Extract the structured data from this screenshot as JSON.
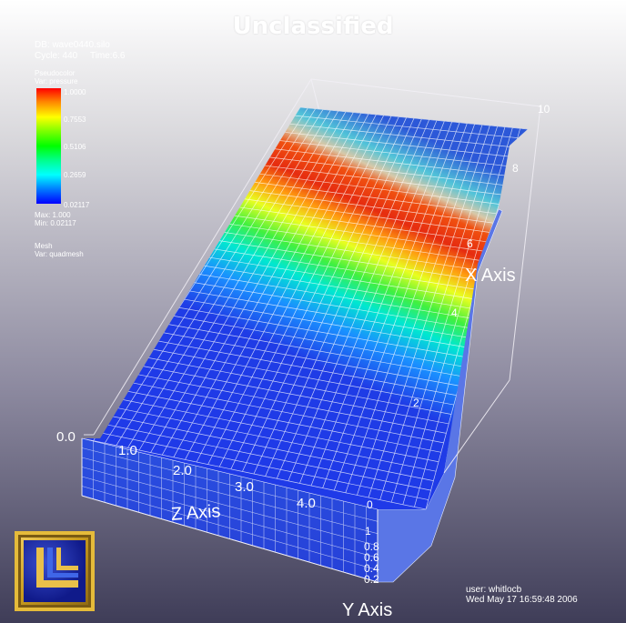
{
  "window": {
    "banner": "Unclassified"
  },
  "database": {
    "db_line": "DB: wave0440.silo",
    "cycle_line": "Cycle: 440     Time:6.6"
  },
  "legend": {
    "plot_type": "Pseudocolor",
    "variable": "Var: pressure",
    "ticks": [
      "1.0000",
      "0.7553",
      "0.5106",
      "0.2659",
      "0.02117"
    ],
    "max": "Max: 1.000",
    "min": "Min: 0.02117",
    "colormap": [
      "#ff0000",
      "#ffff00",
      "#00ff00",
      "#00ffff",
      "#0000ff"
    ]
  },
  "mesh": {
    "plot_type": "Mesh",
    "variable": "Var: quadmesh"
  },
  "axes": {
    "x_title": "X Axis",
    "y_title": "Y Axis",
    "z_title": "Z Axis",
    "x_ticks": [
      "10",
      "8",
      "6",
      "4",
      "2"
    ],
    "z_ticks": [
      "0.0",
      "1.0",
      "2.0",
      "3.0",
      "4.0"
    ],
    "y_ticks": [
      "0",
      "1",
      "0.8",
      "0.6",
      "0.4",
      "0.2"
    ]
  },
  "user": {
    "user_line": "user: whitlocb",
    "date_line": "Wed May 17 16:59:48 2006"
  },
  "logo": {
    "name": "llnl-logo"
  }
}
